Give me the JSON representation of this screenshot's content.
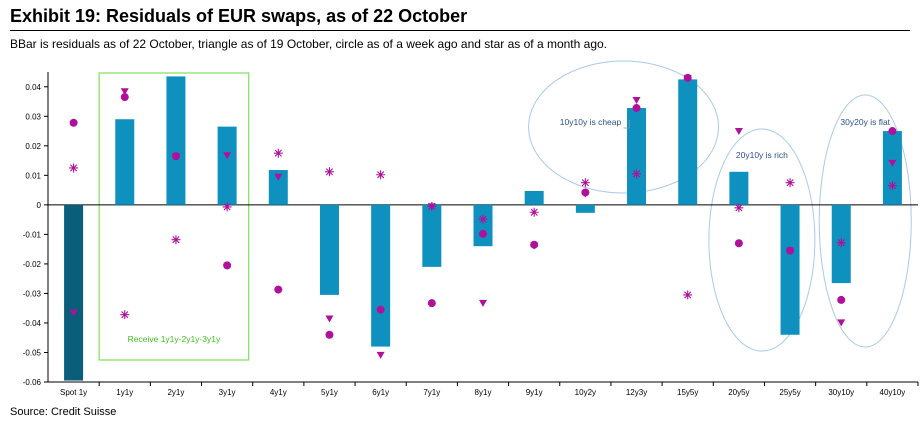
{
  "header": {
    "title": "Exhibit 19: Residuals of EUR swaps, as of 22 October",
    "subtitle": "BBar is residuals as of 22 October, triangle as of 19 October, circle as of a week ago and star as of a month ago."
  },
  "footer": {
    "source": "Source: Credit Suisse"
  },
  "colors": {
    "bar": "#0f91bf",
    "bar_highlight": "#0a5e7a",
    "marker": "#b0109a",
    "axis": "#000000",
    "green_box": "#7fe05a",
    "green_text": "#3fbf20",
    "ellipse": "#a9cbe8",
    "annotation_text": "#2b4f8a"
  },
  "chart_data": {
    "type": "bar",
    "title": "",
    "xlabel": "",
    "ylabel": "",
    "ylim": [
      -0.06,
      0.045
    ],
    "ytick_values": [
      0.04,
      0.03,
      0.02,
      0.01,
      0,
      -0.01,
      -0.02,
      -0.03,
      -0.04,
      -0.05,
      -0.06
    ],
    "ytick_labels": [
      "0.04",
      "0.03",
      "0.02",
      "0.01",
      "0",
      "-0.01",
      "-0.02",
      "-0.03",
      "-0.04",
      "-0.05",
      "-0.06"
    ],
    "categories": [
      "Spot 1y",
      "1y1y",
      "2y1y",
      "3y1y",
      "4y1y",
      "5y1y",
      "6y1y",
      "7y1y",
      "8y1y",
      "9y1y",
      "10y2y",
      "12y3y",
      "15y5y",
      "20y5y",
      "25y5y",
      "30y10y",
      "40y10y"
    ],
    "series": [
      {
        "marker": "bar",
        "values": [
          -0.0595,
          0.029,
          0.0435,
          0.0265,
          0.0118,
          -0.0305,
          -0.048,
          -0.021,
          -0.014,
          0.0047,
          -0.0027,
          0.0328,
          0.0425,
          0.0112,
          -0.044,
          -0.0265,
          0.025
        ]
      },
      {
        "marker": "triangle",
        "values": [
          -0.0365,
          0.0385,
          0.0165,
          0.0168,
          0.0095,
          -0.0385,
          -0.0508,
          -0.0005,
          -0.0332,
          -0.0138,
          0.0038,
          0.0355,
          0.043,
          0.025,
          -0.0155,
          -0.0398,
          0.0142
        ]
      },
      {
        "marker": "circle",
        "values": [
          0.0278,
          0.0365,
          0.0165,
          -0.0205,
          -0.0287,
          -0.044,
          -0.0355,
          -0.0333,
          -0.0098,
          -0.0135,
          0.0042,
          0.0328,
          0.043,
          -0.013,
          -0.0155,
          -0.0322,
          0.025
        ]
      },
      {
        "marker": "star",
        "values": [
          0.0125,
          -0.0372,
          -0.0118,
          -0.0007,
          0.0175,
          0.0112,
          0.0102,
          -0.0005,
          -0.0048,
          -0.0025,
          0.0075,
          0.0105,
          -0.0305,
          -0.001,
          0.0075,
          -0.0128,
          0.0065
        ]
      }
    ],
    "highlight_category": "Spot 1y",
    "grid": false,
    "legend": "none",
    "annotations": [
      {
        "text": "Receive 1y1y-2y1y-3y1y",
        "shape": "rectangle",
        "spans": [
          "1y1y",
          "3y1y"
        ]
      },
      {
        "text": "10y10y is cheap",
        "shape": "ellipse",
        "near": "12y3y"
      },
      {
        "text": "20y10y is rich",
        "shape": "ellipse",
        "near": "20y5y"
      },
      {
        "text": "30y20y is flat",
        "shape": "ellipse",
        "near": "40y10y"
      }
    ]
  }
}
